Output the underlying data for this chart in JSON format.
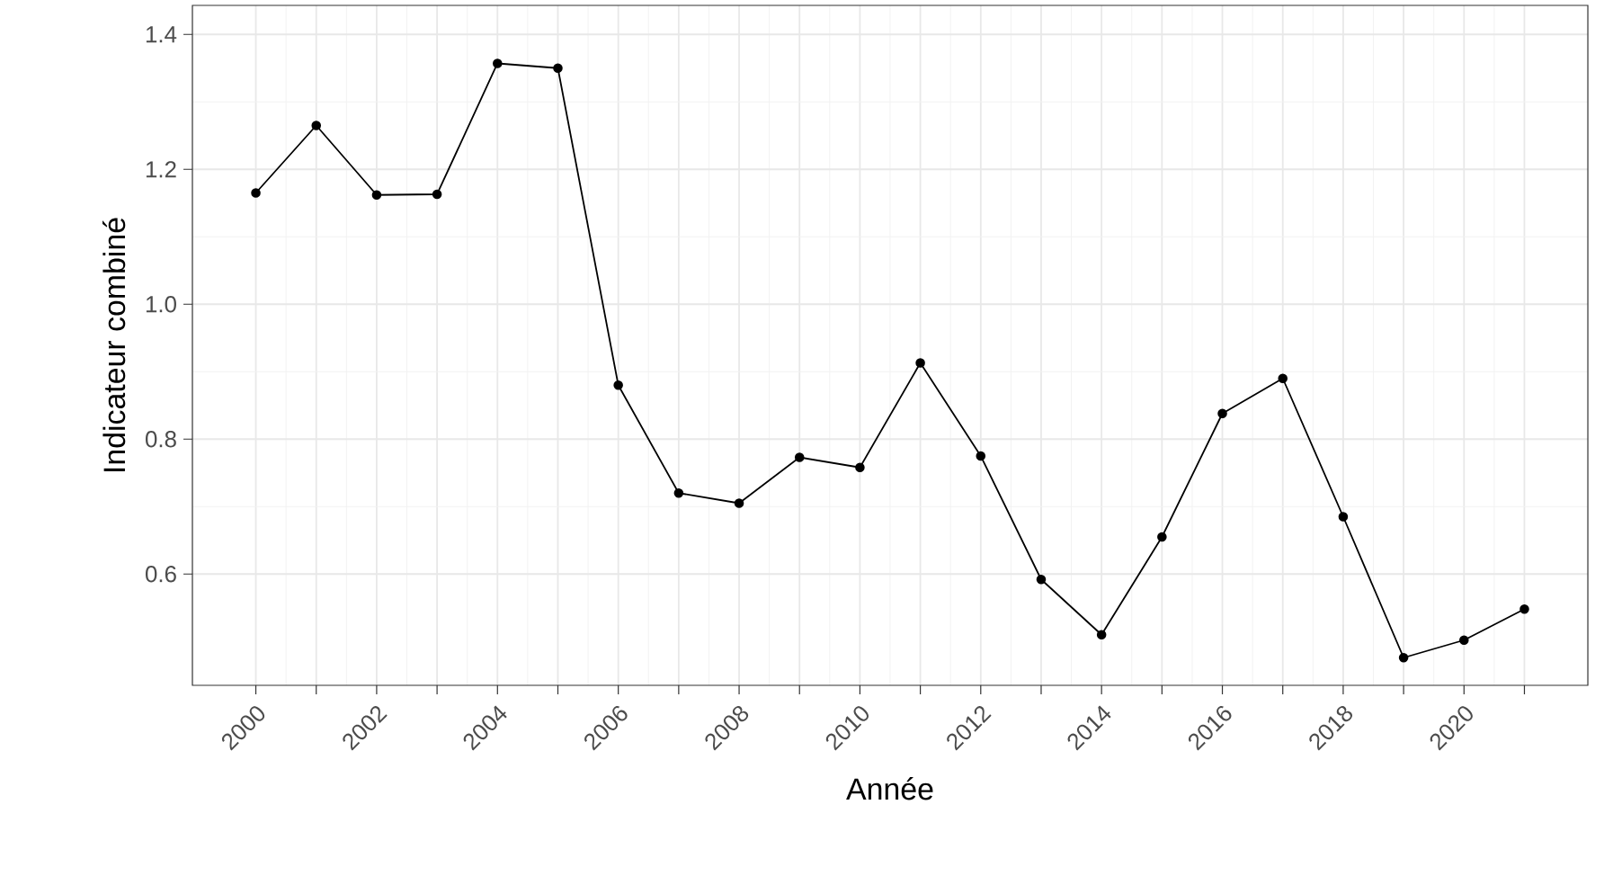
{
  "chart_data": {
    "type": "line",
    "xlabel": "Année",
    "ylabel": "Indicateur combiné",
    "x": [
      2000,
      2001,
      2002,
      2003,
      2004,
      2005,
      2006,
      2007,
      2008,
      2009,
      2010,
      2011,
      2012,
      2013,
      2014,
      2015,
      2016,
      2017,
      2018,
      2019,
      2020,
      2021
    ],
    "series": [
      {
        "color": "#000000",
        "values": [
          1.165,
          1.265,
          1.162,
          1.163,
          1.357,
          1.35,
          0.88,
          0.72,
          0.705,
          0.773,
          0.758,
          0.913,
          0.775,
          0.592,
          0.51,
          0.655,
          0.838,
          0.89,
          0.685,
          0.476,
          0.502,
          0.548
        ]
      }
    ],
    "xlim": [
      1998.95,
      2022.05
    ],
    "ylim": [
      0.435,
      1.443
    ],
    "xticks": [
      2000,
      {
        "value": 2001,
        "label": null
      },
      2002,
      {
        "value": 2003,
        "label": null
      },
      2004,
      {
        "value": 2005,
        "label": null
      },
      2006,
      {
        "value": 2007,
        "label": null
      },
      2008,
      {
        "value": 2009,
        "label": null
      },
      2010,
      {
        "value": 2011,
        "label": null
      },
      2012,
      {
        "value": 2013,
        "label": null
      },
      2014,
      {
        "value": 2015,
        "label": null
      },
      2016,
      {
        "value": 2017,
        "label": null
      },
      2018,
      {
        "value": 2019,
        "label": null
      },
      2020,
      {
        "value": 2021,
        "label": null
      }
    ],
    "yticks": [
      {
        "value": 0.6,
        "label": "0.6"
      },
      {
        "value": 0.8,
        "label": "0.8"
      },
      {
        "value": 1.0,
        "label": "1.0"
      },
      {
        "value": 1.2,
        "label": "1.2"
      },
      {
        "value": 1.4,
        "label": "1.4"
      }
    ],
    "grid": true,
    "marker": "circle",
    "line_style": "solid"
  }
}
